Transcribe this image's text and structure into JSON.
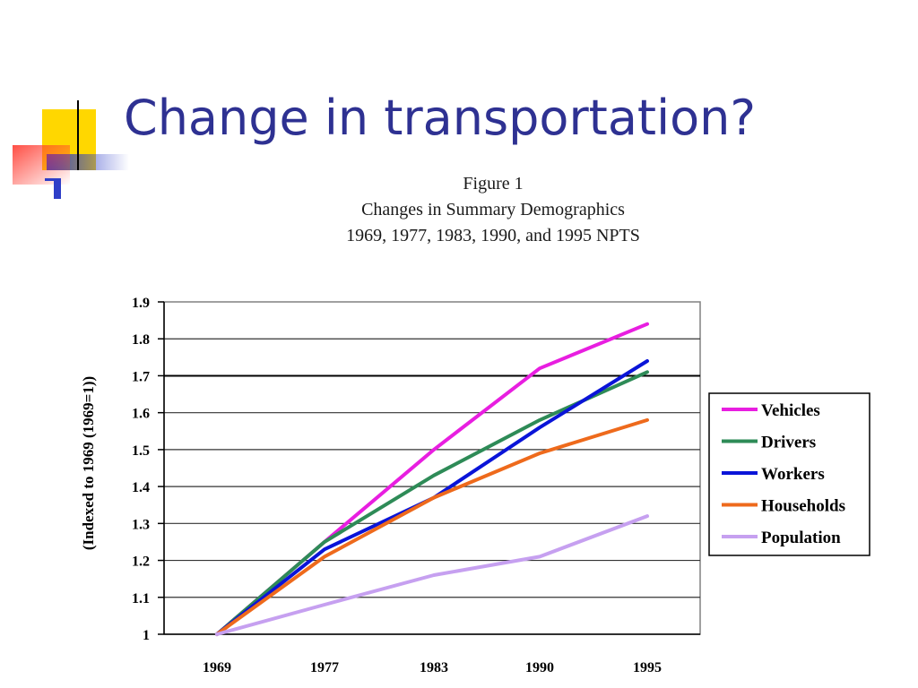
{
  "slide": {
    "title": "Change in transportation?"
  },
  "figure": {
    "number": "Figure 1",
    "subtitle_line1": "Changes in Summary Demographics",
    "subtitle_line2": "1969, 1977, 1983, 1990, and 1995 NPTS"
  },
  "colors": {
    "title": "#2e3192",
    "deco_yellow": "#ffd700",
    "deco_red": "#ff3b30",
    "deco_blue": "#2e3ec8"
  },
  "chart_data": {
    "type": "line",
    "title": "",
    "xlabel": "",
    "ylabel": "(Indexed to 1969 (1969=1))",
    "x": [
      "1969",
      "1977",
      "1983",
      "1990",
      "1995"
    ],
    "ylim": [
      1,
      1.9
    ],
    "y_ticks": [
      "1.9",
      "1.8",
      "1.7",
      "1.6",
      "1.5",
      "1.4",
      "1.3",
      "1.2",
      "1.1",
      "1"
    ],
    "grid": true,
    "legend_position": "right",
    "series": [
      {
        "name": "Vehicles",
        "color": "#e81ee0",
        "values": [
          1,
          1.25,
          1.5,
          1.72,
          1.84
        ]
      },
      {
        "name": "Drivers",
        "color": "#2e8b57",
        "values": [
          1,
          1.25,
          1.43,
          1.58,
          1.71
        ]
      },
      {
        "name": "Workers",
        "color": "#0a14d8",
        "values": [
          1,
          1.23,
          1.37,
          1.56,
          1.74
        ]
      },
      {
        "name": "Households",
        "color": "#ee6a1c",
        "values": [
          1,
          1.21,
          1.37,
          1.49,
          1.58
        ]
      },
      {
        "name": "Population",
        "color": "#c6a0f0",
        "values": [
          1,
          1.08,
          1.16,
          1.21,
          1.32
        ]
      }
    ]
  }
}
